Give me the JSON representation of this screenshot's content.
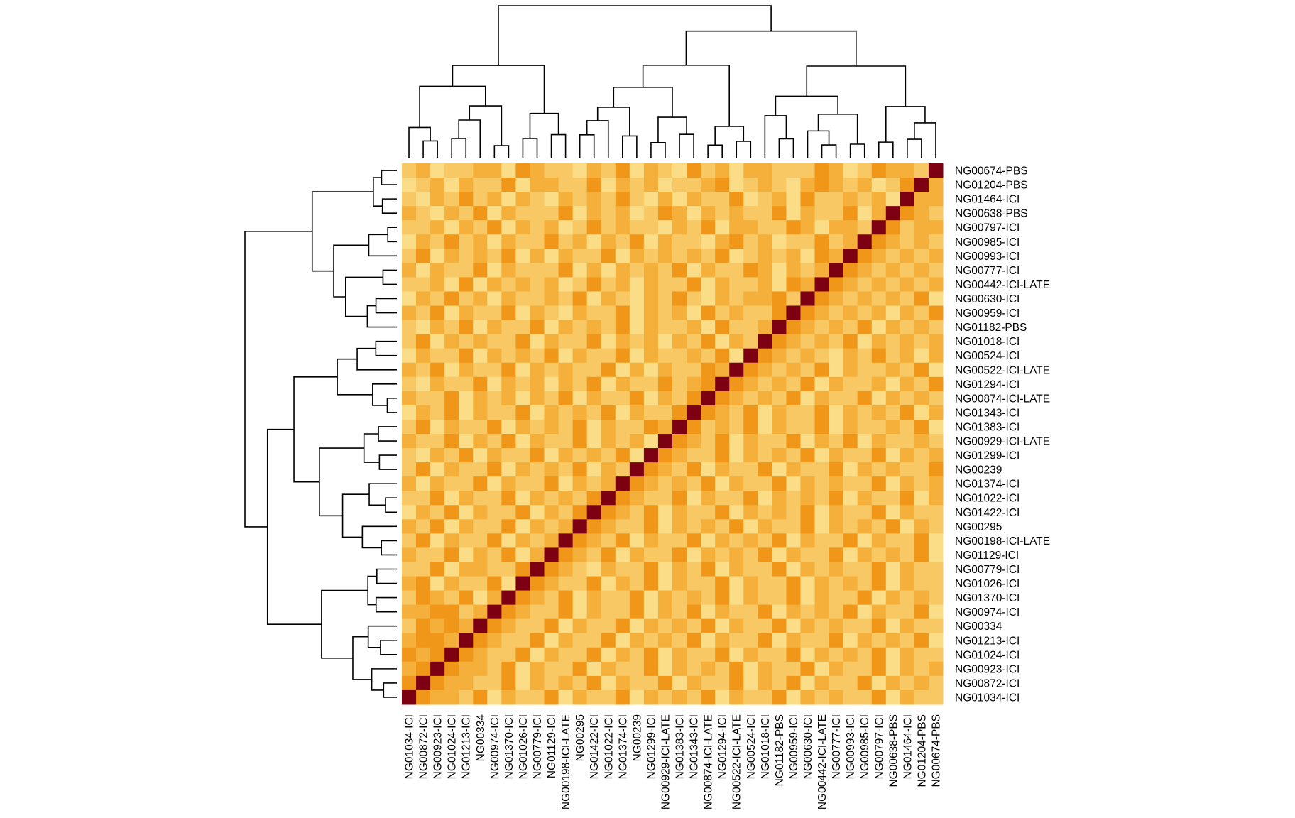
{
  "chart_data": {
    "type": "heatmap",
    "title": "",
    "dendrogram_rows": true,
    "dendrogram_cols": true,
    "row_labels": [
      "NG00674-PBS",
      "NG01204-PBS",
      "NG01464-ICI",
      "NG00638-PBS",
      "NG00797-ICI",
      "NG00985-ICI",
      "NG00993-ICI",
      "NG00777-ICI",
      "NG00442-ICI-LATE",
      "NG00630-ICI",
      "NG00959-ICI",
      "NG01182-PBS",
      "NG01018-ICI",
      "NG00524-ICI",
      "NG00522-ICI-LATE",
      "NG01294-ICI",
      "NG00874-ICI-LATE",
      "NG01343-ICI",
      "NG01383-ICI",
      "NG00929-ICI-LATE",
      "NG01299-ICI",
      "NG00239",
      "NG01374-ICI",
      "NG01022-ICI",
      "NG01422-ICI",
      "NG00295",
      "NG00198-ICI-LATE",
      "NG01129-ICI",
      "NG00779-ICI",
      "NG01026-ICI",
      "NG01370-ICI",
      "NG00974-ICI",
      "NG00334",
      "NG01213-ICI",
      "NG01024-ICI",
      "NG00923-ICI",
      "NG00872-ICI",
      "NG01034-ICI"
    ],
    "col_labels": [
      "NG01034-ICI",
      "NG00872-ICI",
      "NG00923-ICI",
      "NG01024-ICI",
      "NG01213-ICI",
      "NG00334",
      "NG00974-ICI",
      "NG01370-ICI",
      "NG01026-ICI",
      "NG00779-ICI",
      "NG01129-ICI",
      "NG00198-ICI-LATE",
      "NG00295",
      "NG01422-ICI",
      "NG01022-ICI",
      "NG01374-ICI",
      "NG00239",
      "NG01299-ICI",
      "NG00929-ICI-LATE",
      "NG01383-ICI",
      "NG01343-ICI",
      "NG00874-ICI-LATE",
      "NG01294-ICI",
      "NG00522-ICI-LATE",
      "NG00524-ICI",
      "NG01018-ICI",
      "NG01182-PBS",
      "NG00959-ICI",
      "NG00630-ICI",
      "NG00442-ICI-LATE",
      "NG00777-ICI",
      "NG00993-ICI",
      "NG00985-ICI",
      "NG00797-ICI",
      "NG00638-PBS",
      "NG01464-ICI",
      "NG01204-PBS",
      "NG00674-PBS"
    ],
    "value_scale": "level 1 (low, light yellow) to 9 (high, dark red)",
    "colors": {
      "1": "#FFF3AE",
      "2": "#FBDD88",
      "3": "#F8C864",
      "4": "#F4B03A",
      "5": "#F09618",
      "6": "#E8780A",
      "9": "#7D0012"
    },
    "matrix": [
      "34233442543324352432534244333542354439",
      "23424335244335243423345234324543423594",
      "32435342432434353242433523425334342944",
      "43243524333524342354243433524335249543",
      "33424352434235343324352443354244395344",
      "24353424335342435243324534233534954343",
      "35243435242433524343435234342549543434",
      "42433524333524243435243354243495434343",
      "33425243434235342433524334254954343434",
      "24353424334352432435324344539543434352",
      "43524335243243352434253433595434342435",
      "32435243352434352433425334954343524343",
      "35243433524335243424352439543435243434",
      "24335243435243352433435295434324353424",
      "43524335243433524243354954343524334352",
      "32433524342435243353459543435243342435",
      "43352434243524335243595434352433524343",
      "24352433524343524335954352433524343524",
      "35243352434352433549534352433524334352",
      "43352435243352434295435243352435243343",
      "32435243352434352954335243435243352434",
      "35243352434352439543524335243352434335",
      "42433524335243495434352433524343352434",
      "33524335243435954335243352434352433524",
      "24352433524359543524335243435243352433",
      "43524335243495433524343524335243435243",
      "35243352434954352433524343524335243352",
      "43352435249543524335243435243352434352",
      "33524433595432433524352433524343352433",
      "45243352954335243524335243352434352433",
      "35435249543524335243435243352433524343",
      "44553495433524335243524335243435243352",
      "35454954335243352434352433524343352433",
      "45549543352433524343524335243352434352",
      "54595433524335243524335243352434352433",
      "45954435243352433524343524335243352434",
      "59544335243435243352433524352433524343",
      "95443524335243352434352433524343352433"
    ]
  }
}
